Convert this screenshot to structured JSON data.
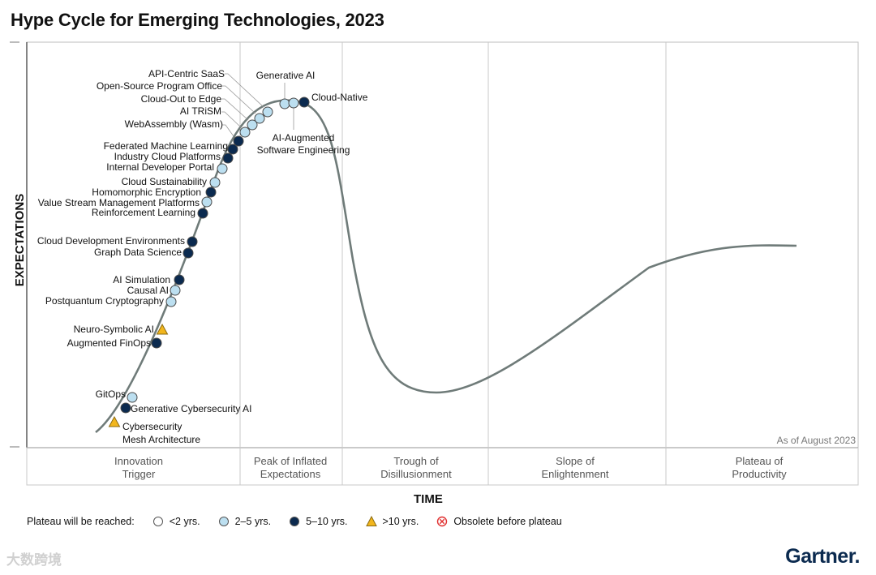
{
  "chart_data": {
    "type": "hype_cycle",
    "title": "Hype Cycle for Emerging Technologies, 2023",
    "ylabel": "EXPECTATIONS",
    "xlabel": "TIME",
    "as_of": "As of August 2023",
    "phases": [
      {
        "line1": "Innovation",
        "line2": "Trigger"
      },
      {
        "line1": "Peak of Inflated",
        "line2": "Expectations"
      },
      {
        "line1": "Trough of",
        "line2": "Disillusionment"
      },
      {
        "line1": "Slope of",
        "line2": "Enlightenment"
      },
      {
        "line1": "Plateau of",
        "line2": "Productivity"
      }
    ],
    "legend": {
      "title": "Plateau will be reached:",
      "items": [
        {
          "key": "lt2",
          "label": "<2 yrs."
        },
        {
          "key": "2to5",
          "label": "2–5 yrs."
        },
        {
          "key": "5to10",
          "label": "5–10 yrs."
        },
        {
          "key": "gt10",
          "label": ">10 yrs."
        },
        {
          "key": "obsolete",
          "label": "Obsolete before plateau"
        }
      ]
    },
    "colors": {
      "lt2": "#ffffff",
      "2to5": "#bcdff0",
      "5to10": "#0b2a4f",
      "gt10": "#f2b61d",
      "obsolete": "#e03030",
      "curve": "#6f7b79"
    },
    "technologies": [
      {
        "name": "Cybersecurity Mesh Architecture",
        "category": "gt10"
      },
      {
        "name": "Generative Cybersecurity AI",
        "category": "5to10"
      },
      {
        "name": "GitOps",
        "category": "2to5"
      },
      {
        "name": "Augmented FinOps",
        "category": "5to10"
      },
      {
        "name": "Neuro-Symbolic AI",
        "category": "gt10"
      },
      {
        "name": "Postquantum Cryptography",
        "category": "2to5"
      },
      {
        "name": "Causal AI",
        "category": "2to5"
      },
      {
        "name": "AI Simulation",
        "category": "5to10"
      },
      {
        "name": "Graph Data Science",
        "category": "5to10"
      },
      {
        "name": "Cloud Development Environments",
        "category": "5to10"
      },
      {
        "name": "Reinforcement Learning",
        "category": "5to10"
      },
      {
        "name": "Value Stream Management Platforms",
        "category": "2to5"
      },
      {
        "name": "Homomorphic Encryption",
        "category": "5to10"
      },
      {
        "name": "Cloud Sustainability",
        "category": "2to5"
      },
      {
        "name": "Internal Developer Portal",
        "category": "2to5"
      },
      {
        "name": "Industry Cloud Platforms",
        "category": "5to10"
      },
      {
        "name": "Federated Machine Learning",
        "category": "5to10"
      },
      {
        "name": "WebAssembly (Wasm)",
        "category": "5to10"
      },
      {
        "name": "AI TRiSM",
        "category": "2to5"
      },
      {
        "name": "Cloud-Out to Edge",
        "category": "2to5"
      },
      {
        "name": "Open-Source Program Office",
        "category": "2to5"
      },
      {
        "name": "API-Centric SaaS",
        "category": "2to5"
      },
      {
        "name": "Generative AI",
        "category": "2to5"
      },
      {
        "name": "AI-Augmented Software Engineering",
        "category": "2to5"
      },
      {
        "name": "Cloud-Native",
        "category": "5to10"
      }
    ]
  },
  "watermark": "大数跨境",
  "brand": "Gartner."
}
